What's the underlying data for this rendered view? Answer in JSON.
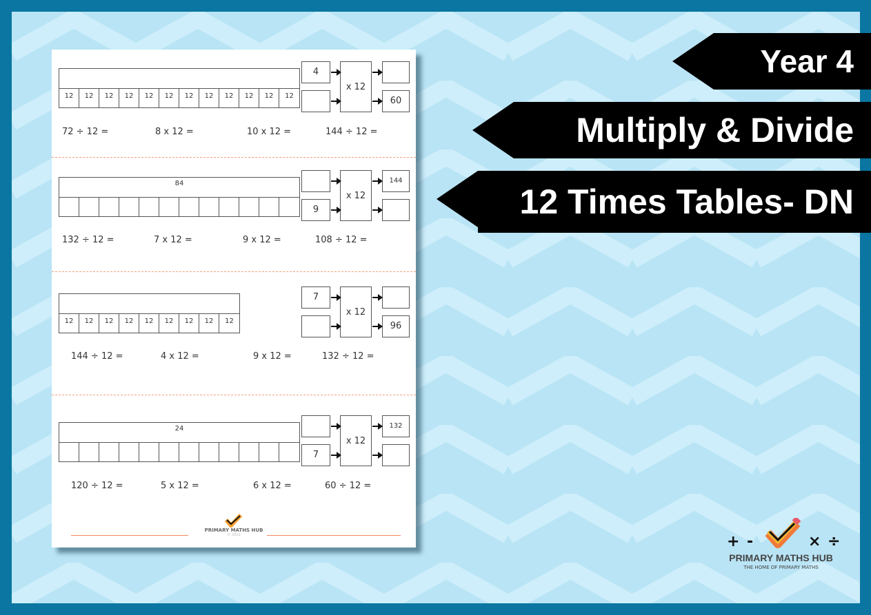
{
  "banners": {
    "year": "Year 4",
    "topic": "Multiply & Divide",
    "title": "12 Times Tables- DN"
  },
  "colors": {
    "frame": "#0a76a1",
    "background": "#b9e4f5",
    "banner": "#000000",
    "divider": "#f2a07a"
  },
  "worksheet": {
    "sections": [
      {
        "bar_total": "",
        "cells": [
          "12",
          "12",
          "12",
          "12",
          "12",
          "12",
          "12",
          "12",
          "12",
          "12",
          "12",
          "12"
        ],
        "machine": {
          "op": "x 12",
          "in_top": "4",
          "in_bottom": "",
          "out_top": "",
          "out_bottom": "60"
        },
        "questions": [
          "72 ÷ 12 =",
          "8 x 12 =",
          "10 x 12 =",
          "144 ÷ 12 ="
        ]
      },
      {
        "bar_total": "84",
        "cells": [
          "",
          "",
          "",
          "",
          "",
          "",
          "",
          "",
          "",
          "",
          "",
          ""
        ],
        "machine": {
          "op": "x 12",
          "in_top": "",
          "in_bottom": "9",
          "out_top": "144",
          "out_bottom": ""
        },
        "questions": [
          "132 ÷ 12 =",
          "7 x 12 =",
          "9 x 12 =",
          "108 ÷ 12 ="
        ]
      },
      {
        "bar_total": "",
        "cells": [
          "12",
          "12",
          "12",
          "12",
          "12",
          "12",
          "12",
          "12",
          "12"
        ],
        "machine": {
          "op": "x 12",
          "in_top": "7",
          "in_bottom": "",
          "out_top": "",
          "out_bottom": "96"
        },
        "questions": [
          "144 ÷ 12 =",
          "4 x 12 =",
          "9 x 12 =",
          "132 ÷ 12 ="
        ]
      },
      {
        "bar_total": "24",
        "cells": [
          "",
          "",
          "",
          "",
          "",
          "",
          "",
          "",
          "",
          "",
          "",
          ""
        ],
        "machine": {
          "op": "x 12",
          "in_top": "",
          "in_bottom": "7",
          "out_top": "132",
          "out_bottom": ""
        },
        "questions": [
          "120 ÷ 12 =",
          "5 x 12 =",
          "6 x 12 =",
          "60 ÷ 12 ="
        ]
      }
    ],
    "footer": {
      "brand": "PRIMARY MATHS HUB",
      "copyright": "© 2022"
    }
  },
  "logo": {
    "ops": [
      "+",
      "-",
      "×",
      "÷"
    ],
    "brand": "PRIMARY MATHS HUB",
    "tagline": "THE HOME OF PRIMARY MATHS"
  }
}
